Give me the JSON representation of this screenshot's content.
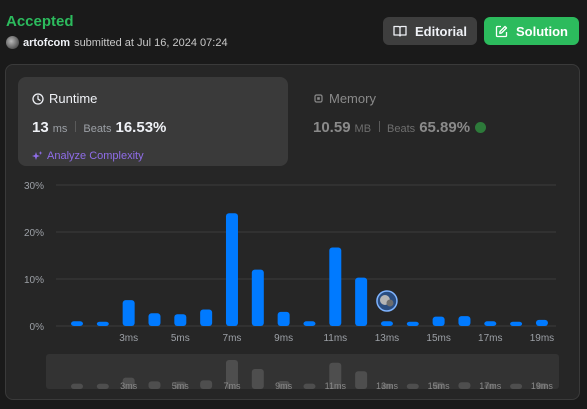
{
  "submission": {
    "status": "Accepted",
    "username": "artofcom",
    "submitted_text": "submitted at Jul 16, 2024 07:24"
  },
  "actions": {
    "editorial_label": "Editorial",
    "solution_label": "Solution"
  },
  "runtime": {
    "title": "Runtime",
    "value": "13",
    "unit": "ms",
    "beats_label": "Beats",
    "beats_pct": "16.53%",
    "analyze_label": "Analyze Complexity"
  },
  "memory": {
    "title": "Memory",
    "value": "10.59",
    "unit": "MB",
    "beats_label": "Beats",
    "beats_pct": "65.89%"
  },
  "colors": {
    "accent_green": "#2cbb5d",
    "bar_blue": "#007aff",
    "analyze_purple": "#8f6de8"
  },
  "chart_data": {
    "type": "bar",
    "title": "",
    "xlabel": "",
    "ylabel": "",
    "ylim": [
      0,
      30
    ],
    "yticks": [
      "0%",
      "10%",
      "20%",
      "30%"
    ],
    "grid": true,
    "x": [
      1,
      2,
      3,
      4,
      5,
      6,
      7,
      8,
      9,
      10,
      11,
      12,
      13,
      14,
      15,
      16,
      17,
      18,
      19
    ],
    "x_tick_labels": [
      "",
      "",
      "3ms",
      "",
      "5ms",
      "",
      "7ms",
      "",
      "9ms",
      "",
      "11ms",
      "",
      "13ms",
      "",
      "15ms",
      "",
      "17ms",
      "",
      "19ms"
    ],
    "values": [
      1.0,
      0.9,
      5.5,
      2.7,
      2.5,
      3.5,
      24.0,
      12.0,
      3.0,
      1.0,
      16.7,
      10.3,
      1.0,
      0.9,
      2.0,
      2.1,
      1.0,
      0.9,
      1.3
    ],
    "highlight_x": 13
  }
}
